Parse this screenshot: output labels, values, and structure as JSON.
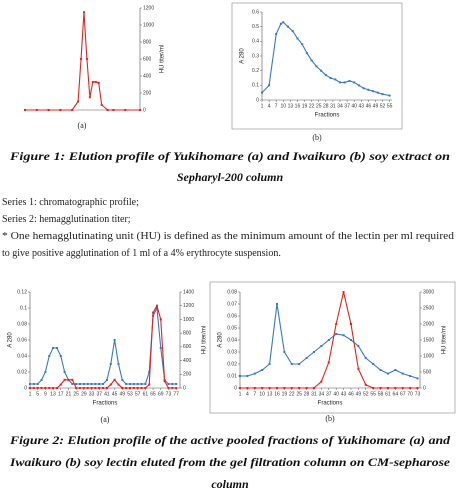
{
  "chart_data": [
    {
      "type": "line",
      "label": "(a)",
      "yaxis_side": "right",
      "ylabel": "HU titer/ml",
      "x": [
        1,
        5,
        9,
        13,
        17,
        19,
        20,
        21,
        22,
        23,
        24,
        25,
        26,
        27,
        29,
        31,
        35,
        40
      ],
      "xlim": [
        1,
        40
      ],
      "ylim": [
        0,
        1200
      ],
      "yticks": [
        0,
        200,
        400,
        600,
        800,
        1000,
        1200
      ],
      "series": [
        {
          "color": "#e8201c",
          "values": [
            0,
            0,
            0,
            0,
            0,
            100,
            600,
            1150,
            600,
            150,
            330,
            330,
            320,
            60,
            0,
            0,
            0,
            0
          ]
        }
      ]
    },
    {
      "type": "line",
      "label": "(b)",
      "ylabel": "A 280",
      "xlabel": "Fractions",
      "x": [
        1,
        4,
        7,
        9,
        10,
        12,
        14,
        16,
        18,
        20,
        22,
        24,
        26,
        28,
        30,
        32,
        34,
        36,
        38,
        40,
        42,
        44,
        46,
        48,
        50,
        52,
        55
      ],
      "xlim": [
        1,
        56
      ],
      "xticks": [
        1,
        4,
        7,
        10,
        13,
        16,
        19,
        22,
        25,
        28,
        31,
        34,
        37,
        40,
        43,
        46,
        49,
        52,
        55
      ],
      "ylim": [
        0,
        0.6
      ],
      "yticks": [
        0,
        0.1,
        0.2,
        0.3,
        0.4,
        0.5,
        0.6
      ],
      "series": [
        {
          "color": "#3a78c2",
          "values": [
            0.05,
            0.1,
            0.45,
            0.52,
            0.53,
            0.5,
            0.47,
            0.42,
            0.38,
            0.32,
            0.27,
            0.23,
            0.2,
            0.17,
            0.15,
            0.14,
            0.12,
            0.12,
            0.13,
            0.12,
            0.1,
            0.08,
            0.07,
            0.06,
            0.05,
            0.04,
            0.03
          ]
        }
      ]
    },
    {
      "type": "line",
      "label": "(a)",
      "ylabel": "A 280",
      "y2label": "HU titer/ml",
      "xlabel": "Fractions",
      "x": [
        1,
        3,
        5,
        7,
        9,
        11,
        13,
        15,
        17,
        19,
        21,
        23,
        25,
        27,
        29,
        31,
        33,
        35,
        37,
        39,
        41,
        43,
        45,
        47,
        49,
        51,
        53,
        55,
        57,
        59,
        61,
        63,
        65,
        67,
        69,
        71,
        73,
        75,
        77
      ],
      "xlim": [
        1,
        79
      ],
      "xticks": [
        1,
        5,
        9,
        13,
        17,
        21,
        25,
        29,
        33,
        37,
        41,
        45,
        49,
        53,
        57,
        61,
        65,
        69,
        73,
        77
      ],
      "ylim": [
        0,
        0.12
      ],
      "yticks": [
        0,
        0.02,
        0.04,
        0.06,
        0.08,
        0.1,
        0.12
      ],
      "y2lim": [
        0,
        1400
      ],
      "y2ticks": [
        0,
        200,
        400,
        600,
        800,
        1000,
        1200,
        1400
      ],
      "series": [
        {
          "color": "#3a78c2",
          "values": [
            0.005,
            0.005,
            0.005,
            0.01,
            0.02,
            0.04,
            0.05,
            0.05,
            0.04,
            0.02,
            0.01,
            0.005,
            0.005,
            0.005,
            0.005,
            0.005,
            0.005,
            0.005,
            0.005,
            0.005,
            0.01,
            0.03,
            0.06,
            0.03,
            0.01,
            0.005,
            0.005,
            0.005,
            0.005,
            0.005,
            0.005,
            0.02,
            0.09,
            0.1,
            0.05,
            0.01,
            0.005,
            0.005,
            0.005
          ]
        },
        {
          "color": "#e8201c",
          "axis": "y2",
          "values": [
            0,
            0,
            0,
            0,
            0,
            0,
            0,
            0,
            50,
            120,
            120,
            120,
            0,
            0,
            0,
            0,
            0,
            0,
            0,
            0,
            0,
            50,
            120,
            50,
            0,
            0,
            0,
            0,
            0,
            0,
            0,
            50,
            1100,
            1200,
            1000,
            100,
            0,
            0,
            0
          ]
        }
      ]
    },
    {
      "type": "line",
      "label": "(b)",
      "ylabel": "A 280",
      "y2label": "HU titer/ml",
      "xlabel": "Fractions",
      "x": [
        1,
        4,
        7,
        10,
        13,
        16,
        19,
        22,
        25,
        28,
        31,
        34,
        37,
        40,
        43,
        46,
        49,
        52,
        55,
        58,
        61,
        64,
        67,
        70,
        73
      ],
      "xlim": [
        1,
        74
      ],
      "xticks": [
        1,
        4,
        7,
        10,
        13,
        16,
        19,
        22,
        25,
        28,
        31,
        34,
        37,
        40,
        43,
        46,
        49,
        52,
        55,
        58,
        61,
        64,
        67,
        70,
        73
      ],
      "ylim": [
        0,
        0.08
      ],
      "yticks": [
        0,
        0.01,
        0.02,
        0.03,
        0.04,
        0.05,
        0.06,
        0.07,
        0.08
      ],
      "y2lim": [
        0,
        3000
      ],
      "y2ticks": [
        0,
        500,
        1000,
        1500,
        2000,
        2500,
        3000
      ],
      "series": [
        {
          "color": "#3a78c2",
          "values": [
            0.01,
            0.01,
            0.012,
            0.015,
            0.02,
            0.07,
            0.03,
            0.02,
            0.02,
            0.025,
            0.03,
            0.035,
            0.04,
            0.045,
            0.044,
            0.04,
            0.035,
            0.025,
            0.02,
            0.015,
            0.012,
            0.015,
            0.012,
            0.01,
            0.008
          ]
        },
        {
          "color": "#e8201c",
          "axis": "y2",
          "values": [
            0,
            0,
            0,
            0,
            0,
            0,
            0,
            0,
            0,
            0,
            0,
            200,
            800,
            2000,
            3000,
            2000,
            600,
            100,
            0,
            0,
            0,
            0,
            0,
            0,
            0
          ]
        }
      ]
    }
  ],
  "figure1": {
    "caption": [
      "Figure 1: Elution profile of Yukihomare (a) and Iwaikuro (b) soy extract on",
      "Sepharyl-200 column"
    ]
  },
  "notes": [
    "Series 1: chromatographic profile;",
    "Series 2: hemagglutination titer;",
    "* One hemagglutinating unit (HU) is defined as the minimum amount of the lectin per ml required",
    "to give positive agglutination of 1 ml of a 4% erythrocyte suspension."
  ],
  "figure2": {
    "caption": [
      "Figure 2: Elution profile of the active pooled fractions of Yukihomare (a) and",
      "Iwaikuro (b) soy lectin eluted from the gel filtration column on CM-sepharose",
      "column"
    ]
  }
}
